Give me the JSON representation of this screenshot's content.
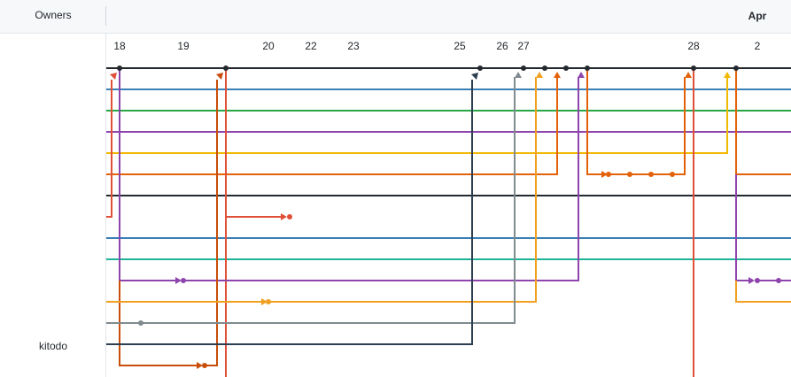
{
  "header": {
    "owners_label": "Owners",
    "month_label": "Apr"
  },
  "owners": [
    "kitodo"
  ],
  "days": [
    "18",
    "19",
    "20",
    "22",
    "23",
    "25",
    "26",
    "27",
    "28",
    "2"
  ],
  "colors": {
    "black": "#24292e",
    "red": "#e05038",
    "orange": "#e36209",
    "dark_orange": "#c84e0a",
    "yellow": "#f1b800",
    "light_orange": "#f0a020",
    "purple": "#8e44ad",
    "blue": "#3a7fb5",
    "green": "#28a745",
    "teal": "#20b39a",
    "gray": "#808a8f",
    "dark_slate": "#2c3e50"
  }
}
